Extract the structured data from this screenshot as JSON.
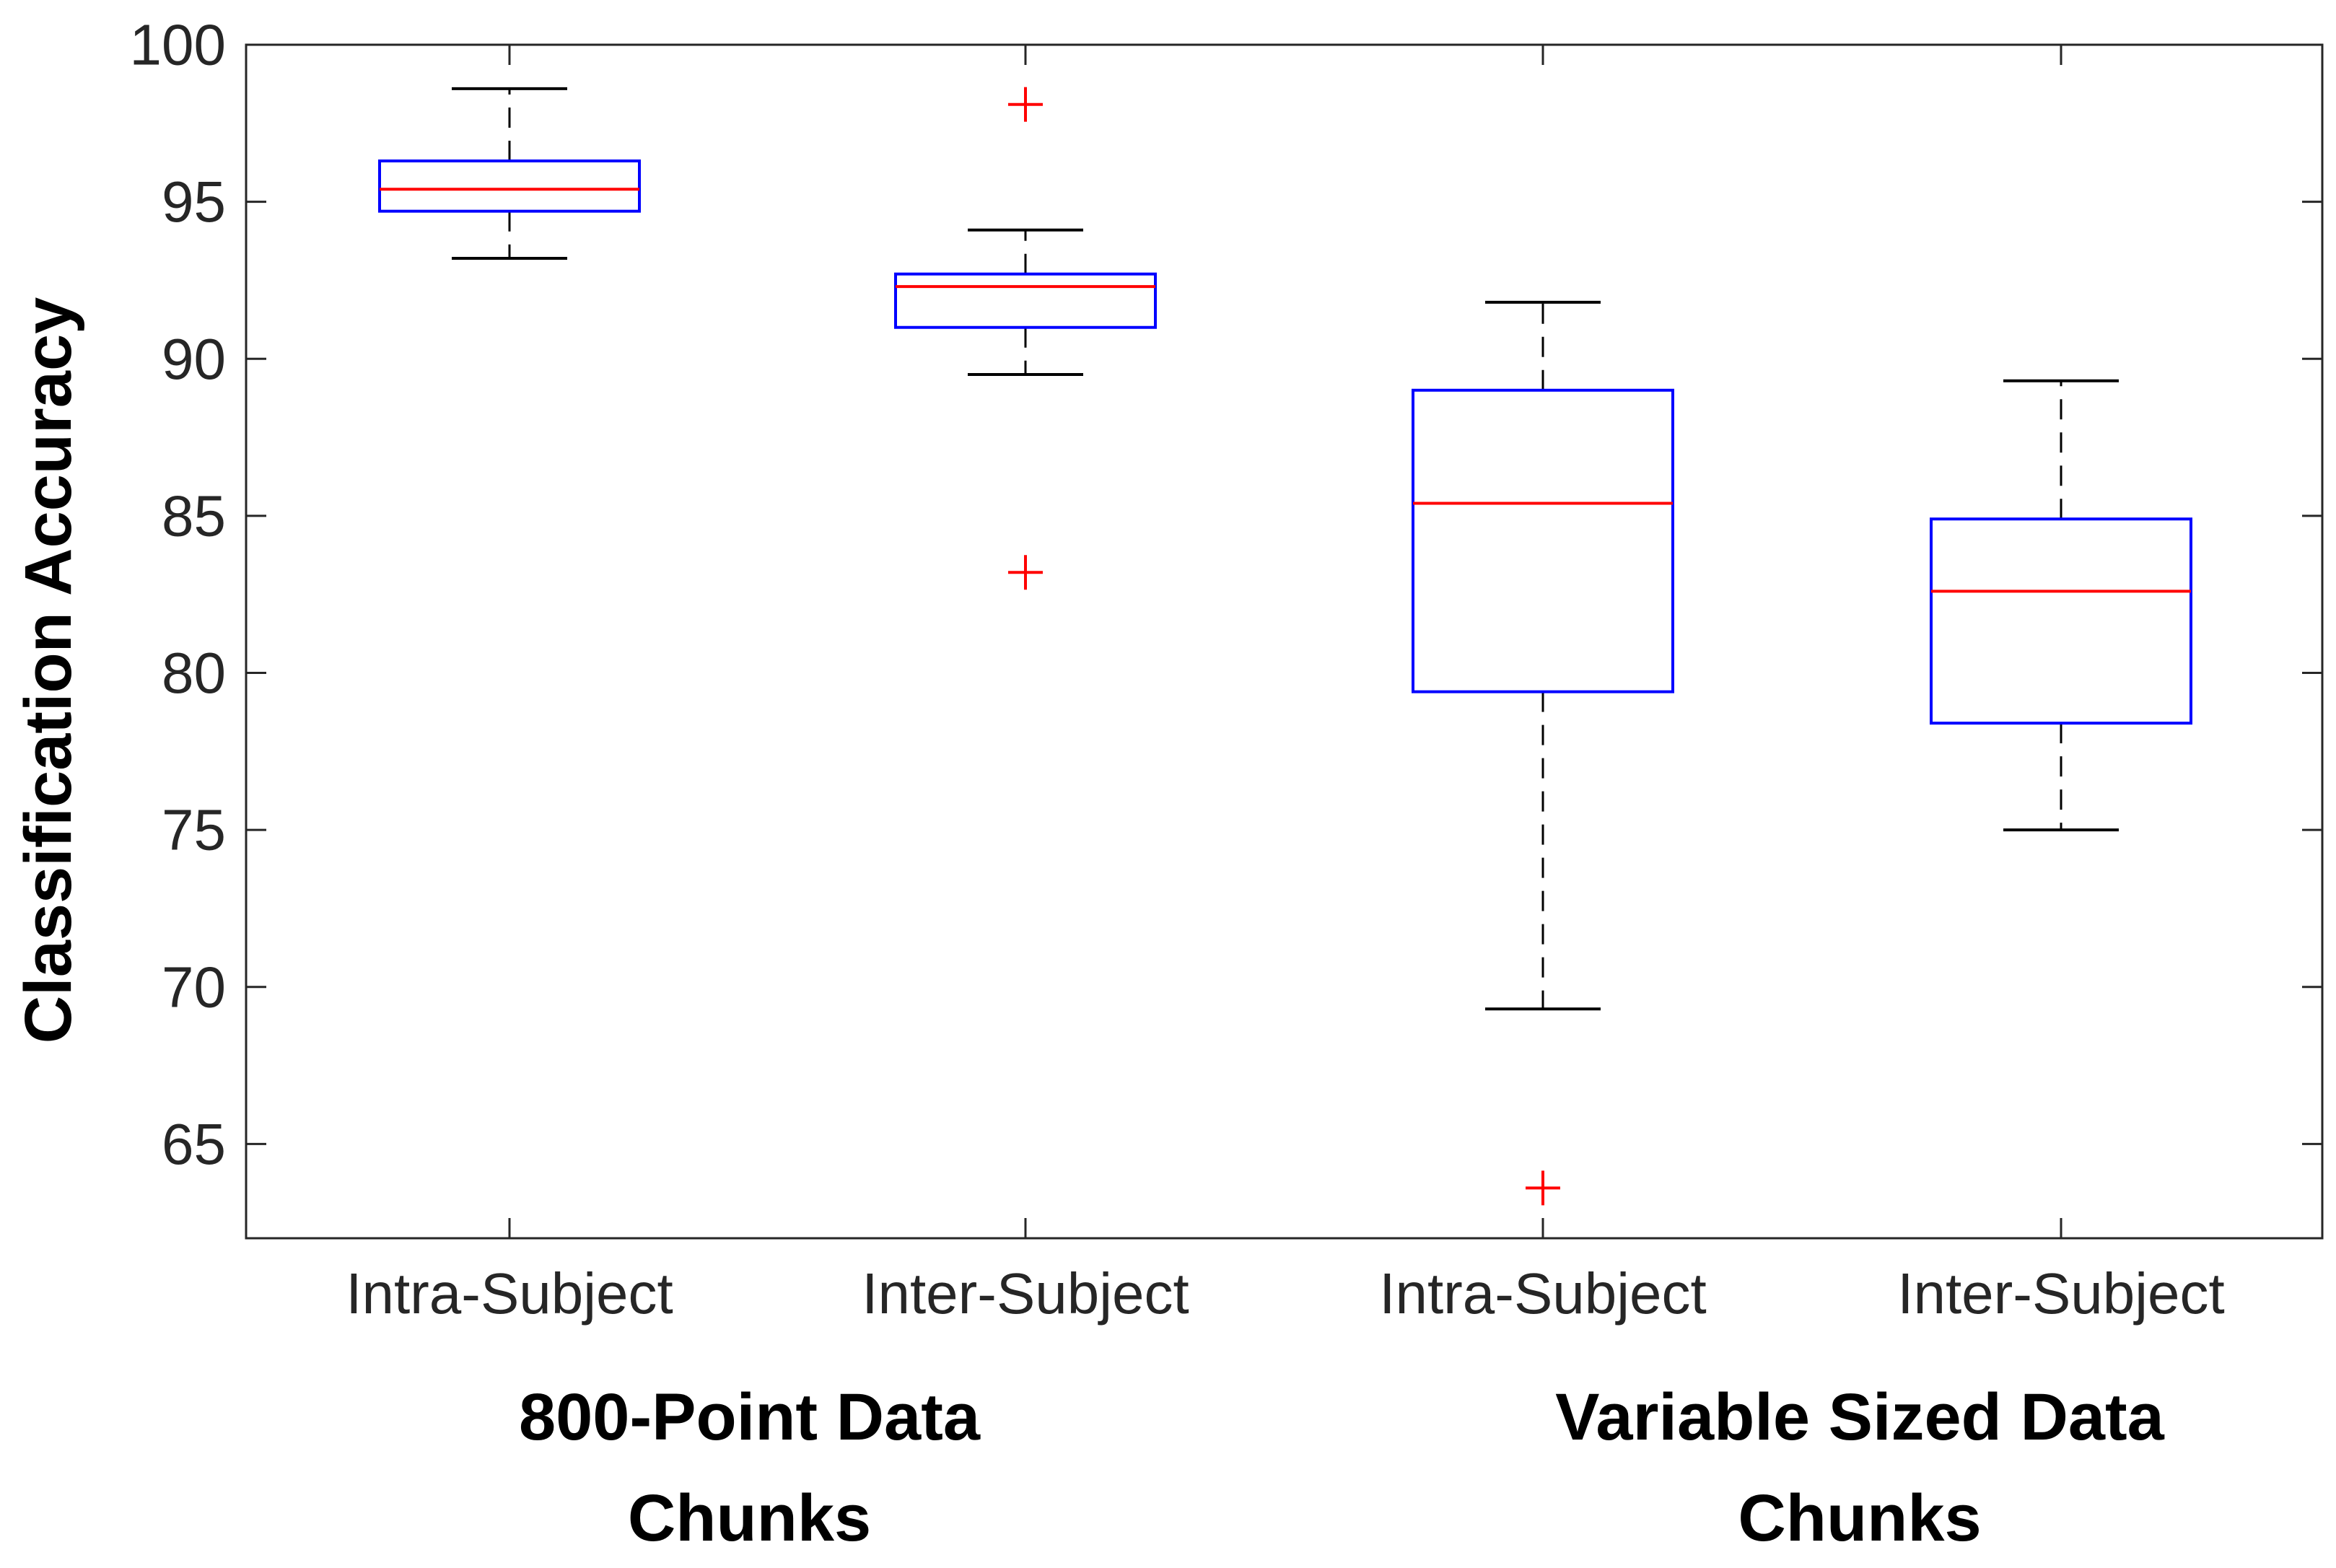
{
  "chart_data": {
    "type": "box",
    "ylabel": "Classification Accuracy",
    "xlabel": "",
    "title": "",
    "ylim": [
      62,
      100
    ],
    "yticks": [
      65,
      70,
      75,
      80,
      85,
      90,
      95,
      100
    ],
    "grid": false,
    "categories": [
      "Intra-Subject",
      "Inter-Subject",
      "Intra-Subject",
      "Inter-Subject"
    ],
    "groups": [
      {
        "label_lines": [
          "800-Point Data",
          "Chunks"
        ],
        "category_indices": [
          0,
          1
        ]
      },
      {
        "label_lines": [
          "Variable Sized Data",
          "Chunks"
        ],
        "category_indices": [
          2,
          3
        ]
      }
    ],
    "boxes": [
      {
        "category": "Intra-Subject",
        "whisker_low": 93.2,
        "q1": 94.7,
        "median": 95.4,
        "q3": 96.3,
        "whisker_high": 98.6,
        "outliers": []
      },
      {
        "category": "Inter-Subject",
        "whisker_low": 89.5,
        "q1": 91.0,
        "median": 92.3,
        "q3": 92.7,
        "whisker_high": 94.1,
        "outliers": [
          98.1,
          83.2
        ]
      },
      {
        "category": "Intra-Subject",
        "whisker_low": 69.3,
        "q1": 79.4,
        "median": 85.4,
        "q3": 89.0,
        "whisker_high": 91.8,
        "outliers": [
          63.6
        ]
      },
      {
        "category": "Inter-Subject",
        "whisker_low": 75.0,
        "q1": 78.4,
        "median": 82.6,
        "q3": 84.9,
        "whisker_high": 89.3,
        "outliers": []
      }
    ],
    "colors": {
      "box": "#0000ff",
      "median": "#ff0000",
      "whisker": "#000000",
      "outlier": "#ff0000",
      "axis": "#262626"
    }
  }
}
